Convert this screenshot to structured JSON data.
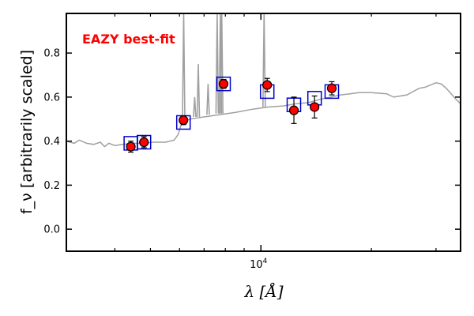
{
  "chart_data": {
    "type": "scatter",
    "title": "",
    "annotation": "EAZY best-fit",
    "annotation_color": "#ff0000",
    "xlabel": "λ [Å]",
    "ylabel": "f_ν [arbitrarily scaled]",
    "x_scale": "log",
    "xlim": [
      2950,
      35000
    ],
    "ylim": [
      -0.1,
      0.98
    ],
    "x_tick_labels": [
      {
        "value": 10000,
        "base": "10",
        "exp": "4"
      }
    ],
    "x_minor_ticks": [
      4000,
      5000,
      6000,
      7000,
      8000,
      9000,
      20000,
      30000
    ],
    "y_ticks": [
      0.0,
      0.2,
      0.4,
      0.6,
      0.8
    ],
    "y_tick_labels": [
      "0.0",
      "0.2",
      "0.4",
      "0.6",
      "0.8"
    ],
    "grid": false,
    "series": [
      {
        "role": "observed",
        "marker": "circle",
        "color": "#ff0000",
        "edge_color": "#000000",
        "points": [
          {
            "x": 4420,
            "y": 0.375,
            "err": 0.025
          },
          {
            "x": 4800,
            "y": 0.395,
            "err": 0.025
          },
          {
            "x": 6150,
            "y": 0.495,
            "err": 0.02
          },
          {
            "x": 7910,
            "y": 0.66,
            "err": 0.02
          },
          {
            "x": 10400,
            "y": 0.655,
            "err": 0.03
          },
          {
            "x": 12300,
            "y": 0.54,
            "err": 0.06
          },
          {
            "x": 14000,
            "y": 0.555,
            "err": 0.05
          },
          {
            "x": 15600,
            "y": 0.64,
            "err": 0.03
          }
        ]
      },
      {
        "role": "model photometry",
        "marker": "square",
        "color": "#0000cc",
        "points": [
          {
            "x": 4420,
            "y": 0.39
          },
          {
            "x": 4800,
            "y": 0.395
          },
          {
            "x": 6150,
            "y": 0.485
          },
          {
            "x": 7910,
            "y": 0.66
          },
          {
            "x": 10400,
            "y": 0.625
          },
          {
            "x": 12300,
            "y": 0.565
          },
          {
            "x": 14000,
            "y": 0.595
          },
          {
            "x": 15600,
            "y": 0.625
          }
        ]
      },
      {
        "role": "template spectrum",
        "line_color": "#a0a0a0",
        "continuum": [
          {
            "x": 2950,
            "y": 0.4
          },
          {
            "x": 3100,
            "y": 0.39
          },
          {
            "x": 3200,
            "y": 0.405
          },
          {
            "x": 3350,
            "y": 0.39
          },
          {
            "x": 3500,
            "y": 0.385
          },
          {
            "x": 3650,
            "y": 0.395
          },
          {
            "x": 3750,
            "y": 0.375
          },
          {
            "x": 3850,
            "y": 0.39
          },
          {
            "x": 4000,
            "y": 0.38
          },
          {
            "x": 4200,
            "y": 0.385
          },
          {
            "x": 4500,
            "y": 0.39
          },
          {
            "x": 4800,
            "y": 0.39
          },
          {
            "x": 5100,
            "y": 0.395
          },
          {
            "x": 5500,
            "y": 0.395
          },
          {
            "x": 5800,
            "y": 0.405
          },
          {
            "x": 5950,
            "y": 0.43
          },
          {
            "x": 6050,
            "y": 0.47
          },
          {
            "x": 6200,
            "y": 0.49
          },
          {
            "x": 6400,
            "y": 0.5
          },
          {
            "x": 7000,
            "y": 0.51
          },
          {
            "x": 7700,
            "y": 0.52
          },
          {
            "x": 8500,
            "y": 0.53
          },
          {
            "x": 9500,
            "y": 0.545
          },
          {
            "x": 10500,
            "y": 0.555
          },
          {
            "x": 11500,
            "y": 0.56
          },
          {
            "x": 12500,
            "y": 0.57
          },
          {
            "x": 13500,
            "y": 0.575
          },
          {
            "x": 14500,
            "y": 0.59
          },
          {
            "x": 15500,
            "y": 0.6
          },
          {
            "x": 16500,
            "y": 0.61
          },
          {
            "x": 17500,
            "y": 0.615
          },
          {
            "x": 18500,
            "y": 0.62
          },
          {
            "x": 20000,
            "y": 0.62
          },
          {
            "x": 22000,
            "y": 0.615
          },
          {
            "x": 23000,
            "y": 0.6
          },
          {
            "x": 24000,
            "y": 0.605
          },
          {
            "x": 25000,
            "y": 0.61
          },
          {
            "x": 26000,
            "y": 0.625
          },
          {
            "x": 27000,
            "y": 0.64
          },
          {
            "x": 28000,
            "y": 0.645
          },
          {
            "x": 29000,
            "y": 0.655
          },
          {
            "x": 30000,
            "y": 0.665
          },
          {
            "x": 31000,
            "y": 0.66
          },
          {
            "x": 32000,
            "y": 0.64
          },
          {
            "x": 33000,
            "y": 0.615
          },
          {
            "x": 34000,
            "y": 0.59
          },
          {
            "x": 35000,
            "y": 0.57
          }
        ],
        "emission_lines": [
          {
            "x": 6160,
            "peak": 0.98,
            "base": 0.5
          },
          {
            "x": 6600,
            "peak": 0.6,
            "base": 0.51
          },
          {
            "x": 6750,
            "peak": 0.75,
            "base": 0.51
          },
          {
            "x": 7180,
            "peak": 0.66,
            "base": 0.52
          },
          {
            "x": 7600,
            "peak": 0.98,
            "base": 0.525
          },
          {
            "x": 7750,
            "peak": 0.98,
            "base": 0.525
          },
          {
            "x": 7820,
            "peak": 0.98,
            "base": 0.525
          },
          {
            "x": 10200,
            "peak": 0.98,
            "base": 0.555
          }
        ]
      }
    ]
  }
}
